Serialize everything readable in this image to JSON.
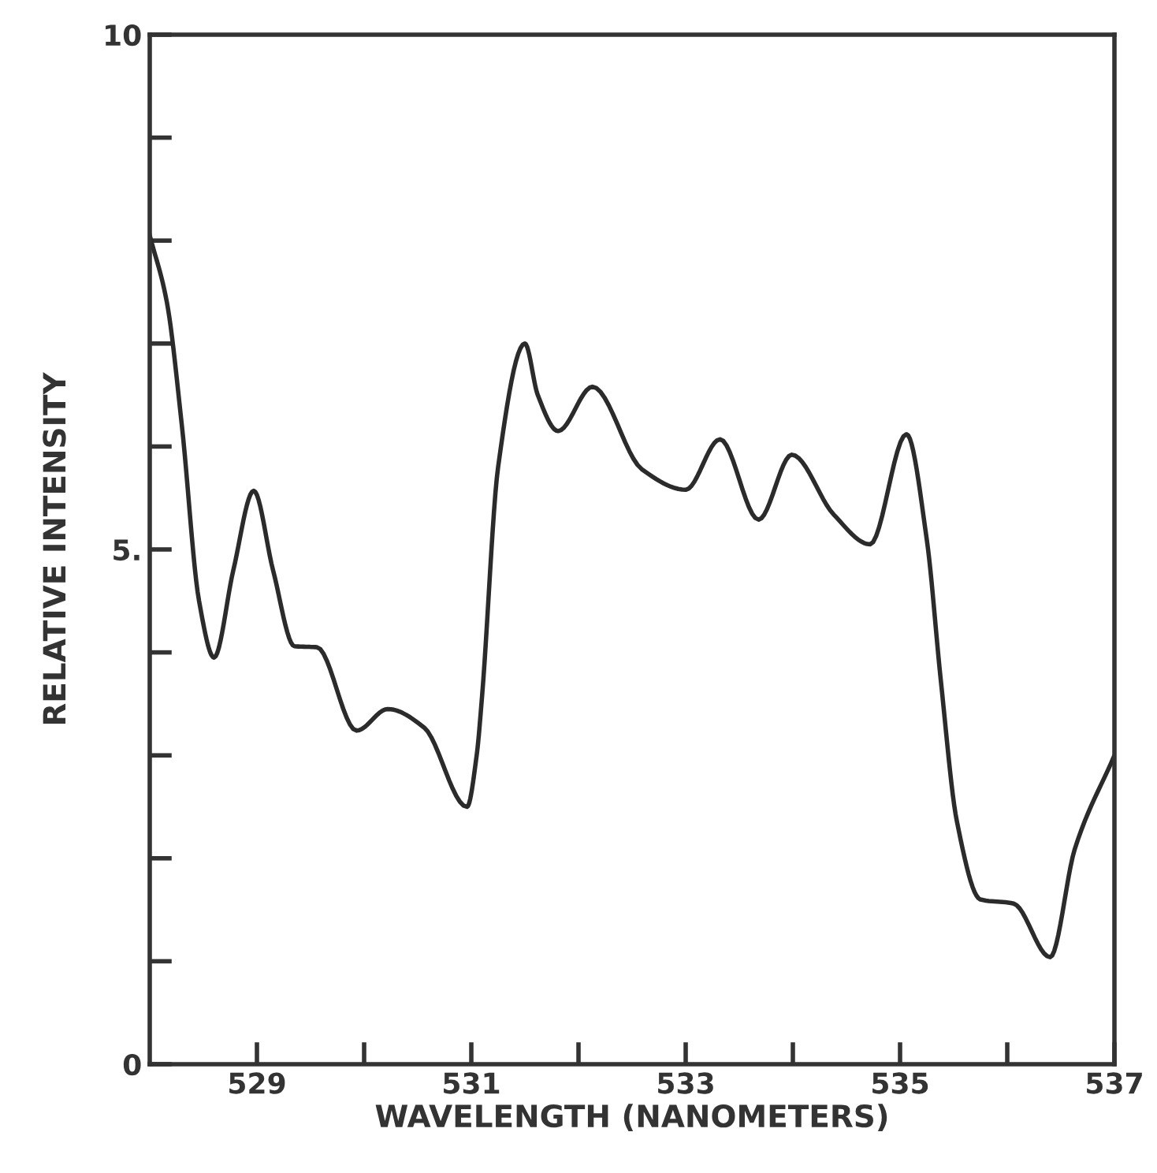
{
  "chart_data": {
    "type": "line",
    "xlabel": "WAVELENGTH (NANOMETERS)",
    "ylabel": "RELATIVE INTENSITY",
    "xlim": [
      528,
      537
    ],
    "ylim": [
      0,
      10
    ],
    "xticks": [
      {
        "value": 529,
        "label": "529"
      },
      {
        "value": 530,
        "label": null
      },
      {
        "value": 531,
        "label": "531"
      },
      {
        "value": 532,
        "label": null
      },
      {
        "value": 533,
        "label": "533"
      },
      {
        "value": 534,
        "label": null
      },
      {
        "value": 535,
        "label": "535"
      },
      {
        "value": 536,
        "label": null
      },
      {
        "value": 537,
        "label": "537"
      }
    ],
    "yticks": [
      {
        "value": 0,
        "label": "0"
      },
      {
        "value": 1,
        "label": null
      },
      {
        "value": 2,
        "label": null
      },
      {
        "value": 3,
        "label": null
      },
      {
        "value": 4,
        "label": null
      },
      {
        "value": 5,
        "label": "5."
      },
      {
        "value": 6,
        "label": null
      },
      {
        "value": 7,
        "label": null
      },
      {
        "value": 8,
        "label": null
      },
      {
        "value": 9,
        "label": null
      },
      {
        "value": 10,
        "label": "10"
      }
    ],
    "grid": false,
    "marker": "none",
    "line_style": "solid",
    "series": [
      {
        "color": "#2b2b2b",
        "x": [
          528.0,
          528.16,
          528.3,
          528.46,
          528.6,
          528.78,
          528.97,
          529.15,
          529.35,
          529.56,
          529.93,
          530.22,
          530.56,
          530.96,
          531.05,
          531.1,
          531.25,
          531.5,
          531.62,
          531.81,
          532.13,
          532.59,
          533.0,
          533.32,
          533.68,
          533.99,
          534.38,
          534.72,
          535.06,
          535.25,
          535.38,
          535.53,
          535.75,
          536.06,
          536.4,
          536.63,
          537.0
        ],
        "values": [
          8.05,
          7.4,
          6.2,
          4.5,
          3.95,
          4.8,
          5.57,
          4.8,
          4.06,
          4.05,
          3.24,
          3.45,
          3.27,
          2.5,
          3.0,
          3.57,
          5.8,
          7.0,
          6.5,
          6.15,
          6.58,
          5.78,
          5.58,
          6.07,
          5.29,
          5.92,
          5.34,
          5.05,
          6.12,
          5.09,
          3.73,
          2.36,
          1.6,
          1.56,
          1.04,
          2.09,
          3.0
        ]
      }
    ]
  }
}
